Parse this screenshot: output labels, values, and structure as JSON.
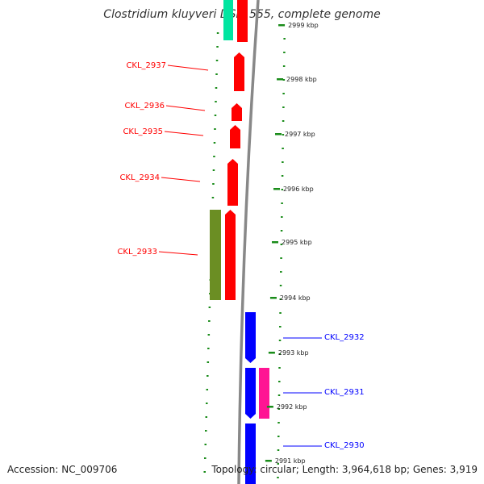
{
  "title": "Clostridium kluyveri DSM 555, complete genome",
  "accession": "Accession: NC_009706",
  "summary": "Topology: circular; Length: 3,964,618 bp; Genes: 3,919",
  "colors": {
    "forward_cds": "#ff0000",
    "reverse_cds": "#0000ff",
    "forward_feature": "#6b8e23",
    "reverse_feature": "#ff1493",
    "teal_feature": "#00e5a0",
    "gc_dots": "#1a8c1a",
    "backbone": "#888888"
  },
  "kbp_ticks": [
    "2991 kbp",
    "2992 kbp",
    "2993 kbp",
    "2994 kbp",
    "2995 kbp",
    "2996 kbp",
    "2997 kbp",
    "2998 kbp",
    "2999 kbp"
  ],
  "left_labels": [
    "CKL_2937",
    "CKL_2936",
    "CKL_2935",
    "CKL_2934",
    "CKL_2933"
  ],
  "right_labels": [
    "CKL_2932",
    "CKL_2931",
    "CKL_2930"
  ]
}
